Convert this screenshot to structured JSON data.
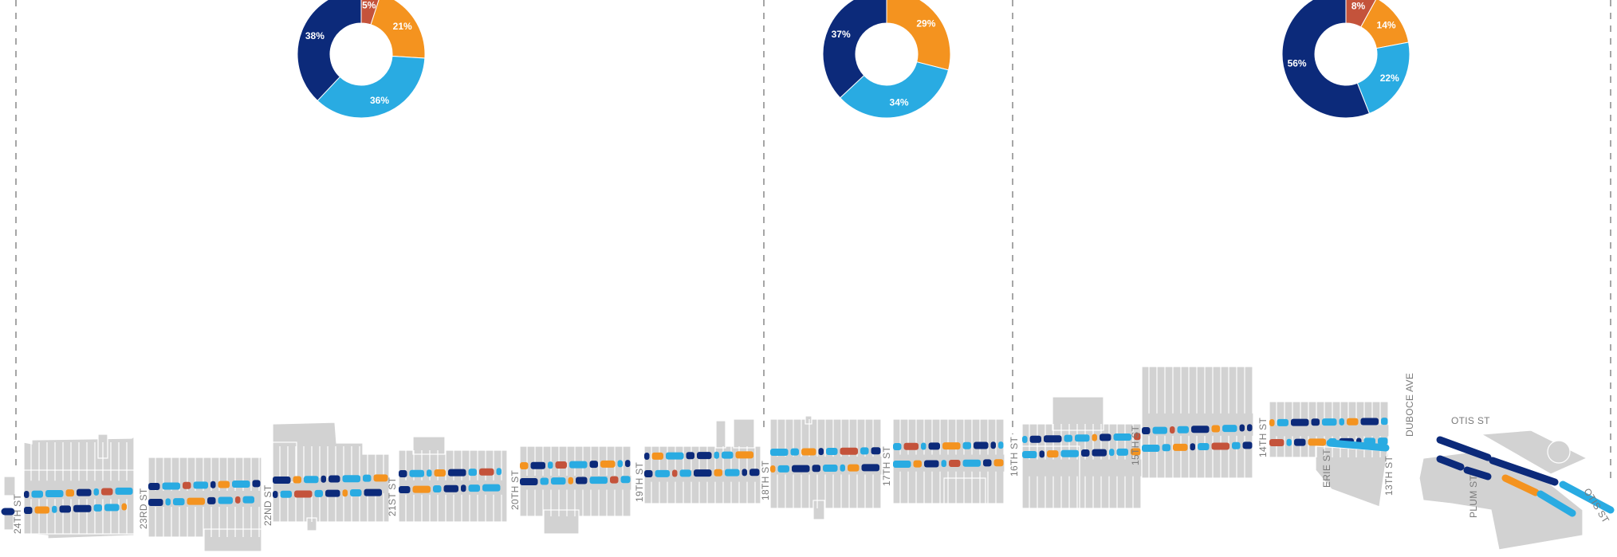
{
  "colors": {
    "red": "#c4533b",
    "orange": "#f4931f",
    "light_blue": "#29abe2",
    "navy": "#0c2a7a",
    "parcel": "#d2d2d2",
    "divider": "#a6a6a6",
    "street_label": "#7a7a7a"
  },
  "chart_data": [
    {
      "type": "pie",
      "variant": "donut",
      "slices": [
        {
          "label": "5%",
          "value": 5,
          "color": "#c4533b"
        },
        {
          "label": "21%",
          "value": 21,
          "color": "#f4931f"
        },
        {
          "label": "36%",
          "value": 36,
          "color": "#29abe2"
        },
        {
          "label": "38%",
          "value": 38,
          "color": "#0c2a7a"
        }
      ]
    },
    {
      "type": "pie",
      "variant": "donut",
      "slices": [
        {
          "label": "29%",
          "value": 29,
          "color": "#f4931f"
        },
        {
          "label": "34%",
          "value": 34,
          "color": "#29abe2"
        },
        {
          "label": "37%",
          "value": 37,
          "color": "#0c2a7a"
        }
      ]
    },
    {
      "type": "pie",
      "variant": "donut",
      "slices": [
        {
          "label": "8%",
          "value": 8,
          "color": "#c4533b"
        },
        {
          "label": "14%",
          "value": 14,
          "color": "#f4931f"
        },
        {
          "label": "22%",
          "value": 22,
          "color": "#29abe2"
        },
        {
          "label": "56%",
          "value": 56,
          "color": "#0c2a7a"
        }
      ]
    }
  ],
  "streets": [
    "24TH ST",
    "23RD ST",
    "22ND ST",
    "21ST ST",
    "20TH ST",
    "19TH ST",
    "18TH ST",
    "17TH ST",
    "16TH ST",
    "15TH ST",
    "14TH ST",
    "ERIE ST",
    "13TH ST",
    "DUBOCE AVE",
    "PLUM ST",
    "OTIS ST",
    "OTIS ST"
  ]
}
